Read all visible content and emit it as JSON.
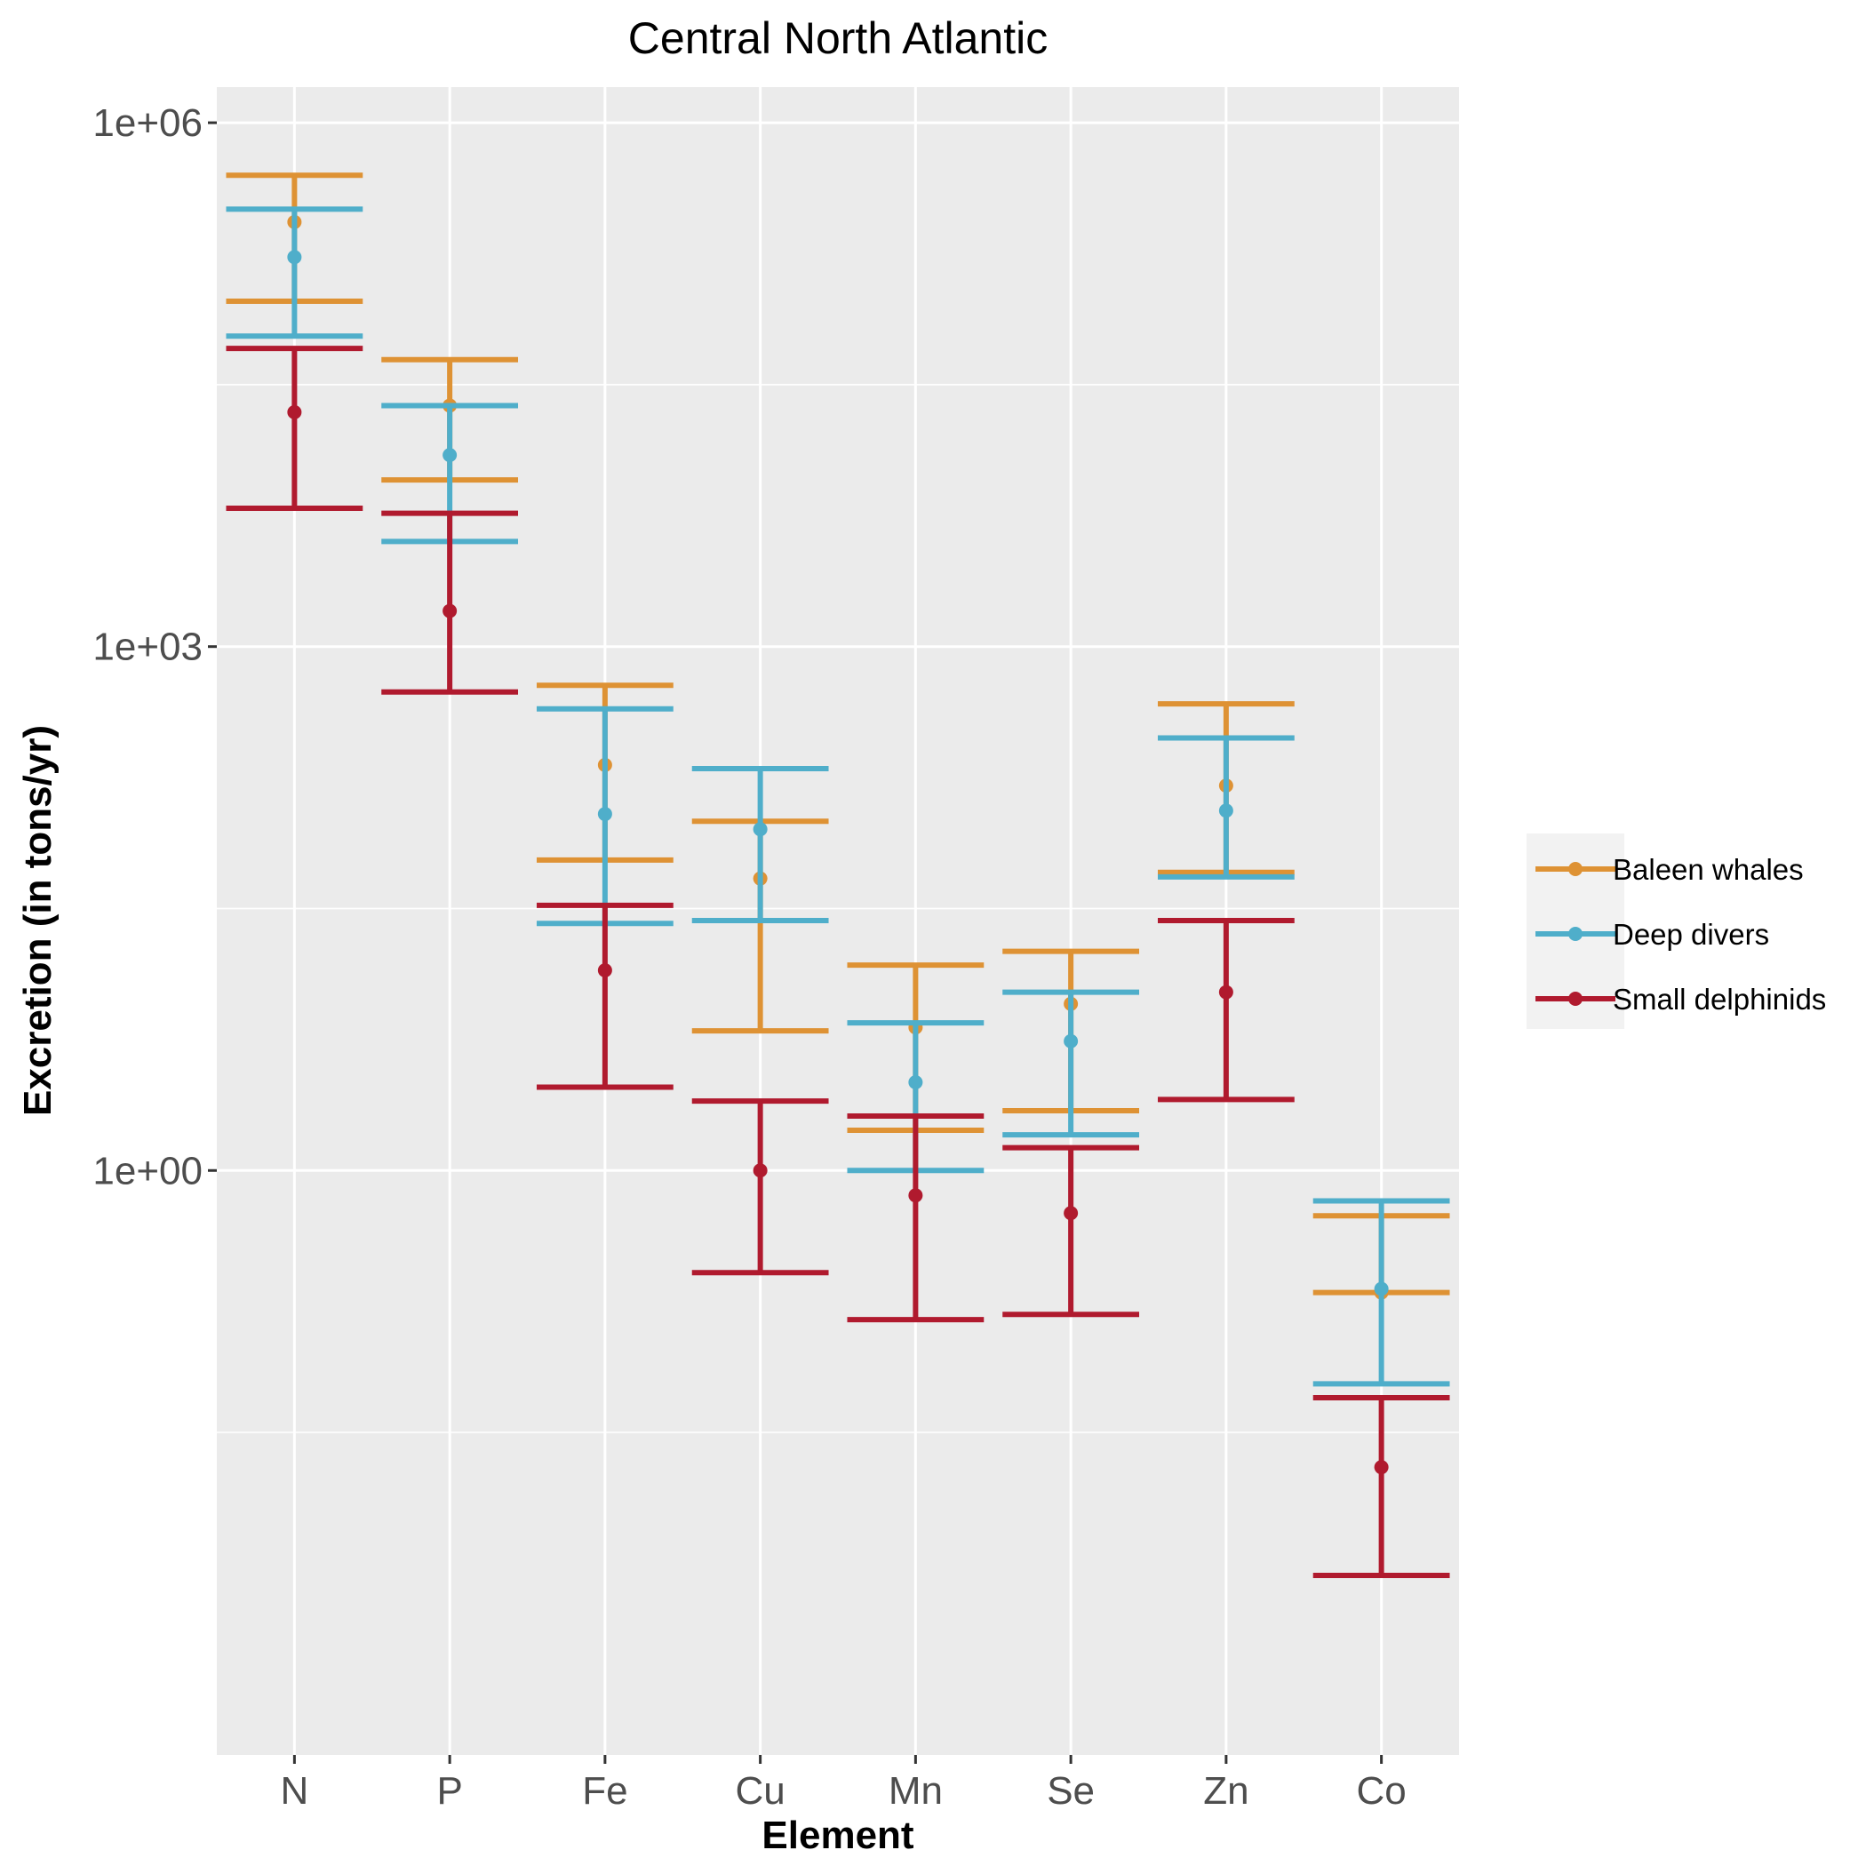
{
  "chart_data": {
    "type": "errorbar",
    "title": "Central North Atlantic",
    "xlabel": "Element",
    "ylabel": "Excretion (in tons/yr)",
    "y_scale": "log10",
    "ylim": [
      0.00045,
      1600000
    ],
    "y_ticks": [
      {
        "value": 1,
        "label": "1e+00"
      },
      {
        "value": 1000,
        "label": "1e+03"
      },
      {
        "value": 1000000,
        "label": "1e+06"
      }
    ],
    "categories": [
      "N",
      "P",
      "Fe",
      "Cu",
      "Mn",
      "Se",
      "Zn",
      "Co"
    ],
    "grid": true,
    "legend_position": "right",
    "series": [
      {
        "name": "Baleen whales",
        "color": "#DE9234",
        "points": [
          {
            "mean": 270000,
            "low": 95000,
            "high": 500000
          },
          {
            "mean": 24000,
            "low": 9000,
            "high": 44000
          },
          {
            "mean": 210,
            "low": 60,
            "high": 600
          },
          {
            "mean": 47,
            "low": 6.3,
            "high": 100
          },
          {
            "mean": 6.6,
            "low": 1.7,
            "high": 15
          },
          {
            "mean": 9,
            "low": 2.2,
            "high": 18
          },
          {
            "mean": 160,
            "low": 51,
            "high": 470
          },
          {
            "mean": 0.2,
            "low": 0.2,
            "high": 0.55
          }
        ]
      },
      {
        "name": "Deep divers",
        "color": "#4FAECA",
        "points": [
          {
            "mean": 170000,
            "low": 60000,
            "high": 320000
          },
          {
            "mean": 12500,
            "low": 4000,
            "high": 24000
          },
          {
            "mean": 110,
            "low": 26,
            "high": 440
          },
          {
            "mean": 90,
            "low": 27,
            "high": 200
          },
          {
            "mean": 3.2,
            "low": 1,
            "high": 7
          },
          {
            "mean": 5.5,
            "low": 1.6,
            "high": 10.5
          },
          {
            "mean": 115,
            "low": 48,
            "high": 300
          },
          {
            "mean": 0.21,
            "low": 0.06,
            "high": 0.67
          }
        ]
      },
      {
        "name": "Small delphinids",
        "color": "#B01A2E",
        "points": [
          {
            "mean": 22000,
            "low": 6200,
            "high": 51000
          },
          {
            "mean": 1600,
            "low": 550,
            "high": 5800
          },
          {
            "mean": 14,
            "low": 3,
            "high": 33
          },
          {
            "mean": 1,
            "low": 0.26,
            "high": 2.5
          },
          {
            "mean": 0.72,
            "low": 0.14,
            "high": 2.05
          },
          {
            "mean": 0.57,
            "low": 0.15,
            "high": 1.35
          },
          {
            "mean": 10.5,
            "low": 2.55,
            "high": 27
          },
          {
            "mean": 0.02,
            "low": 0.0048,
            "high": 0.05
          }
        ]
      }
    ]
  }
}
